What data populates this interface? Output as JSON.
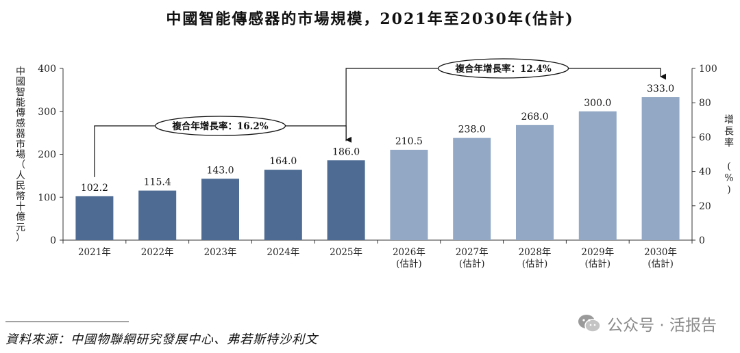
{
  "title": "中國智能傳感器的市場規模，2021年至2030年(估計)",
  "source": "資料來源：中國物聯網研究發展中心、弗若斯特沙利文",
  "watermark": "公众号 · 活报告",
  "colors": {
    "historical": "#4e6b93",
    "forecast": "#92a8c5",
    "axis": "#333333"
  },
  "chart_data": {
    "type": "bar",
    "categories": [
      "2021年",
      "2022年",
      "2023年",
      "2024年",
      "2025年",
      "2026年\n(估計)",
      "2027年\n(估計)",
      "2028年\n(估計)",
      "2029年\n(估計)",
      "2030年\n(估計)"
    ],
    "values": [
      102.2,
      115.4,
      143.0,
      164.0,
      186.0,
      210.5,
      238.0,
      268.0,
      300.0,
      333.0
    ],
    "value_labels": [
      "102.2",
      "115.4",
      "143.0",
      "164.0",
      "186.0",
      "210.5",
      "238.0",
      "268.0",
      "300.0",
      "333.0"
    ],
    "forecast_from_index": 5,
    "ylabel": "中國智能傳感器市場（人民幣十億元）",
    "ylim": [
      0,
      400
    ],
    "yticks": [
      "0",
      "100",
      "200",
      "300",
      "400"
    ],
    "y2label": "增長率 (%)",
    "y2lim": [
      0,
      100
    ],
    "y2ticks": [
      "0",
      "20",
      "40",
      "60",
      "80",
      "100"
    ],
    "grid": false,
    "annotations": [
      {
        "label": "複合年增長率：",
        "value": "16.2%",
        "from_index": 0,
        "to_index": 4
      },
      {
        "label": "複合年增長率：",
        "value": "12.4%",
        "from_index": 4,
        "to_index": 9
      }
    ]
  }
}
